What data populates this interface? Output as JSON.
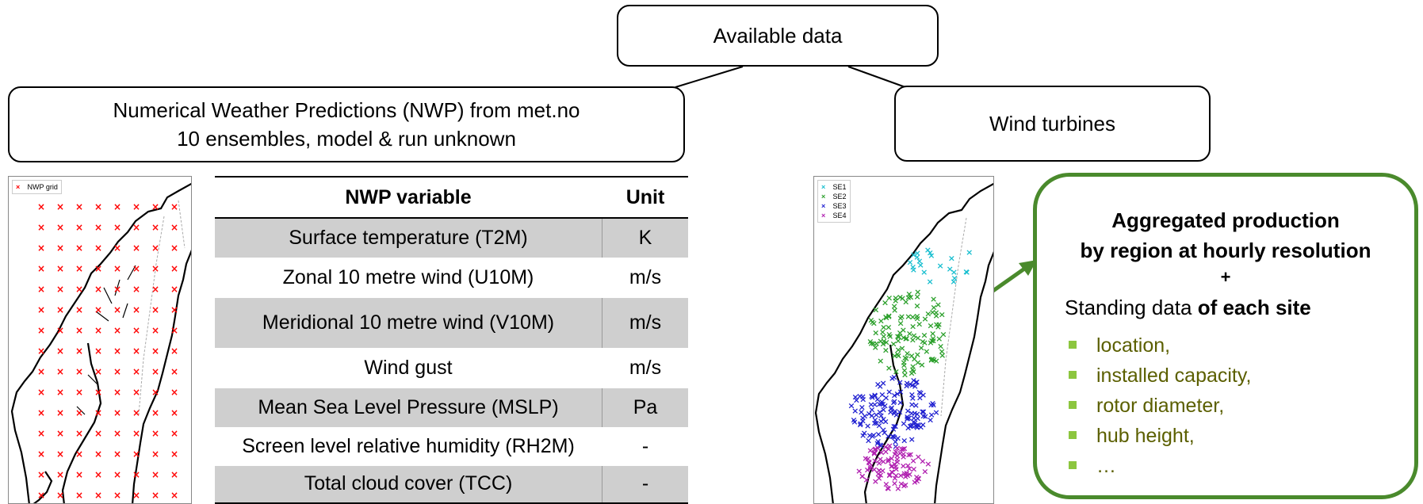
{
  "top_box": {
    "label": "Available data"
  },
  "nwp_box": {
    "line1": "Numerical Weather Predictions (NWP) from met.no",
    "line2": "10 ensembles, model & run unknown"
  },
  "wind_box": {
    "label": "Wind turbines"
  },
  "nwp_map": {
    "legend": [
      {
        "marker": "×",
        "label": "NWP grid",
        "color": "#ff0000"
      }
    ]
  },
  "variables_table": {
    "headers": {
      "variable": "NWP variable",
      "unit": "Unit"
    },
    "rows": [
      {
        "variable": "Surface temperature (T2M)",
        "unit": "K",
        "shaded": true
      },
      {
        "variable": "Zonal 10 metre wind (U10M)",
        "unit": "m/s",
        "shaded": false
      },
      {
        "variable": "Meridional 10 metre wind (V10M)",
        "unit": "m/s",
        "shaded": true
      },
      {
        "variable": "Wind gust",
        "unit": "m/s",
        "shaded": false
      },
      {
        "variable": "Mean Sea Level Pressure (MSLP)",
        "unit": "Pa",
        "shaded": true
      },
      {
        "variable": "Screen level relative humidity (RH2M)",
        "unit": "-",
        "shaded": false
      },
      {
        "variable": "Total cloud cover (TCC)",
        "unit": "-",
        "shaded": true
      }
    ]
  },
  "sites_map": {
    "legend": [
      {
        "marker": "×",
        "label": "SE1",
        "color": "#17becf"
      },
      {
        "marker": "×",
        "label": "SE2",
        "color": "#2ca02c"
      },
      {
        "marker": "×",
        "label": "SE3",
        "color": "#1f1fd0"
      },
      {
        "marker": "×",
        "label": "SE4",
        "color": "#b01fb0"
      }
    ]
  },
  "production_box": {
    "title_line1": "Aggregated production",
    "title_line2": "by region at hourly resolution",
    "plus": "+",
    "standing_prefix": "Standing data ",
    "standing_bold": "of each site",
    "properties": [
      "location,",
      "installed capacity,",
      "rotor diameter,",
      "hub height,",
      "…"
    ],
    "accent_color": "#4a8a2c",
    "bullet_color": "#8cc63f",
    "text_color": "#5b5f00"
  }
}
